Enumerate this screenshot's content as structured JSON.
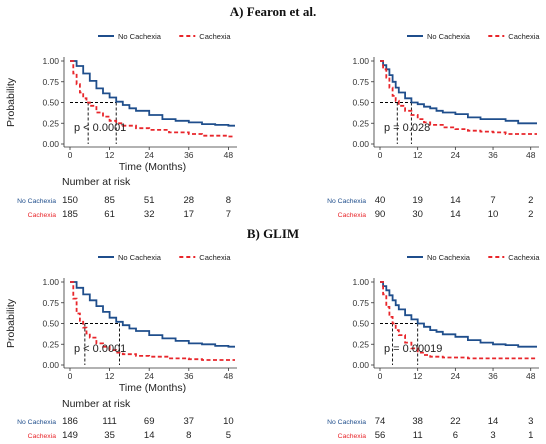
{
  "sections": [
    {
      "label": "A)",
      "title": "Fearon et al."
    },
    {
      "label": "B)",
      "title": "GLIM"
    }
  ],
  "colors": {
    "no_cachexia": "#1f4e8c",
    "cachexia": "#e8262b",
    "axis": "#333333",
    "ref": "#000000"
  },
  "chart_data": [
    {
      "type": "line",
      "panel": "A-left",
      "xlabel": "Time (Months)",
      "ylabel": "Probability",
      "xlim": [
        0,
        50
      ],
      "ylim": [
        0,
        1
      ],
      "xticks": [
        0,
        12,
        24,
        36,
        48
      ],
      "yticks": [
        0,
        0.25,
        0.5,
        0.75,
        1
      ],
      "ytick_labels": [
        "0.00",
        "0.25",
        "0.50",
        "0.75",
        "1.00"
      ],
      "legend": "top",
      "series": [
        {
          "name": "No Cachexia",
          "style": "solid",
          "x": [
            0,
            2,
            4,
            6,
            8,
            10,
            12,
            14,
            16,
            18,
            20,
            24,
            28,
            32,
            36,
            40,
            44,
            48,
            50
          ],
          "y": [
            1,
            0.94,
            0.85,
            0.76,
            0.67,
            0.61,
            0.56,
            0.51,
            0.47,
            0.43,
            0.4,
            0.35,
            0.3,
            0.28,
            0.26,
            0.24,
            0.23,
            0.22,
            0.22
          ]
        },
        {
          "name": "Cachexia",
          "style": "dashed",
          "x": [
            0,
            1,
            2,
            3,
            4,
            5,
            6,
            8,
            10,
            12,
            14,
            16,
            20,
            24,
            30,
            36,
            40,
            44,
            48,
            50
          ],
          "y": [
            1,
            0.85,
            0.72,
            0.62,
            0.55,
            0.5,
            0.46,
            0.38,
            0.33,
            0.28,
            0.25,
            0.22,
            0.19,
            0.17,
            0.14,
            0.12,
            0.1,
            0.1,
            0.09,
            0.09
          ]
        }
      ],
      "median_lines": [
        {
          "x": 5.5,
          "y": 0.5
        },
        {
          "x": 14,
          "y": 0.5
        }
      ],
      "pvalue": "p < 0.0001",
      "risk_table": {
        "title": "Number at risk",
        "times": [
          0,
          12,
          24,
          36,
          48
        ],
        "rows": [
          {
            "name": "No Cachexia",
            "values": [
              "150",
              "85",
              "51",
              "28",
              "8"
            ]
          },
          {
            "name": "Cachexia",
            "values": [
              "185",
              "61",
              "32",
              "17",
              "7"
            ]
          }
        ]
      }
    },
    {
      "type": "line",
      "panel": "A-right",
      "xlim": [
        0,
        50
      ],
      "ylim": [
        0,
        1
      ],
      "xticks": [
        0,
        12,
        24,
        36,
        48
      ],
      "yticks": [
        0,
        0.25,
        0.5,
        0.75,
        1
      ],
      "ytick_labels": [
        "0.00",
        "0.25",
        "0.50",
        "0.75",
        "1.00"
      ],
      "legend": "top",
      "series": [
        {
          "name": "No Cachexia",
          "style": "solid",
          "x": [
            0,
            1,
            2,
            3,
            4,
            5,
            6,
            8,
            10,
            12,
            14,
            16,
            18,
            20,
            24,
            28,
            32,
            36,
            40,
            44,
            48,
            50
          ],
          "y": [
            1,
            0.95,
            0.9,
            0.83,
            0.75,
            0.68,
            0.62,
            0.55,
            0.5,
            0.48,
            0.45,
            0.43,
            0.4,
            0.38,
            0.36,
            0.32,
            0.3,
            0.3,
            0.28,
            0.25,
            0.25,
            0.25
          ]
        },
        {
          "name": "Cachexia",
          "style": "dashed",
          "x": [
            0,
            1,
            2,
            3,
            4,
            5,
            6,
            8,
            10,
            12,
            14,
            16,
            20,
            24,
            28,
            32,
            36,
            40,
            44,
            48,
            50
          ],
          "y": [
            1,
            0.9,
            0.8,
            0.68,
            0.58,
            0.52,
            0.46,
            0.4,
            0.35,
            0.3,
            0.26,
            0.23,
            0.2,
            0.18,
            0.16,
            0.15,
            0.14,
            0.12,
            0.12,
            0.12,
            0.12
          ]
        }
      ],
      "median_lines": [
        {
          "x": 5.5,
          "y": 0.5
        },
        {
          "x": 10,
          "y": 0.5
        }
      ],
      "pvalue": "p = 0.028",
      "risk_table": {
        "times": [
          0,
          12,
          24,
          36,
          48
        ],
        "rows": [
          {
            "name": "No Cachexia",
            "values": [
              "40",
              "19",
              "14",
              "7",
              "2"
            ]
          },
          {
            "name": "Cachexia",
            "values": [
              "90",
              "30",
              "14",
              "10",
              "2"
            ]
          }
        ]
      }
    },
    {
      "type": "line",
      "panel": "B-left",
      "xlabel": "Time (Months)",
      "ylabel": "Probability",
      "xlim": [
        0,
        50
      ],
      "ylim": [
        0,
        1
      ],
      "xticks": [
        0,
        12,
        24,
        36,
        48
      ],
      "yticks": [
        0,
        0.25,
        0.5,
        0.75,
        1
      ],
      "ytick_labels": [
        "0.00",
        "0.25",
        "0.50",
        "0.75",
        "1.00"
      ],
      "legend": "top",
      "series": [
        {
          "name": "No Cachexia",
          "style": "solid",
          "x": [
            0,
            2,
            4,
            6,
            8,
            10,
            12,
            14,
            16,
            18,
            20,
            24,
            28,
            32,
            36,
            40,
            44,
            48,
            50
          ],
          "y": [
            1,
            0.93,
            0.85,
            0.78,
            0.71,
            0.64,
            0.57,
            0.52,
            0.48,
            0.44,
            0.41,
            0.36,
            0.32,
            0.29,
            0.26,
            0.25,
            0.23,
            0.22,
            0.22
          ]
        },
        {
          "name": "Cachexia",
          "style": "dashed",
          "x": [
            0,
            1,
            2,
            3,
            4,
            5,
            6,
            8,
            10,
            12,
            14,
            16,
            20,
            24,
            30,
            36,
            40,
            44,
            48,
            50
          ],
          "y": [
            1,
            0.8,
            0.62,
            0.52,
            0.45,
            0.38,
            0.33,
            0.26,
            0.22,
            0.18,
            0.15,
            0.13,
            0.11,
            0.1,
            0.08,
            0.07,
            0.06,
            0.06,
            0.06,
            0.06
          ]
        }
      ],
      "median_lines": [
        {
          "x": 4.5,
          "y": 0.5
        },
        {
          "x": 15,
          "y": 0.5
        }
      ],
      "pvalue": "p < 0.0001",
      "risk_table": {
        "title": "Number at risk",
        "times": [
          0,
          12,
          24,
          36,
          48
        ],
        "rows": [
          {
            "name": "No Cachexia",
            "values": [
              "186",
              "111",
              "69",
              "37",
              "10"
            ]
          },
          {
            "name": "Cachexia",
            "values": [
              "149",
              "35",
              "14",
              "8",
              "5"
            ]
          }
        ]
      }
    },
    {
      "type": "line",
      "panel": "B-right",
      "xlim": [
        0,
        50
      ],
      "ylim": [
        0,
        1
      ],
      "xticks": [
        0,
        12,
        24,
        36,
        48
      ],
      "yticks": [
        0,
        0.25,
        0.5,
        0.75,
        1
      ],
      "ytick_labels": [
        "0.00",
        "0.25",
        "0.50",
        "0.75",
        "1.00"
      ],
      "legend": "top",
      "series": [
        {
          "name": "No Cachexia",
          "style": "solid",
          "x": [
            0,
            1,
            2,
            3,
            4,
            5,
            6,
            8,
            10,
            12,
            14,
            16,
            18,
            20,
            24,
            28,
            32,
            36,
            40,
            44,
            48,
            50
          ],
          "y": [
            1,
            0.95,
            0.9,
            0.84,
            0.78,
            0.72,
            0.67,
            0.6,
            0.55,
            0.5,
            0.46,
            0.42,
            0.4,
            0.37,
            0.34,
            0.3,
            0.27,
            0.25,
            0.24,
            0.22,
            0.22,
            0.22
          ]
        },
        {
          "name": "Cachexia",
          "style": "dashed",
          "x": [
            0,
            1,
            2,
            3,
            4,
            5,
            6,
            8,
            10,
            12,
            14,
            16,
            20,
            24,
            28,
            32,
            36,
            40,
            44,
            48,
            50
          ],
          "y": [
            1,
            0.85,
            0.7,
            0.58,
            0.5,
            0.42,
            0.36,
            0.27,
            0.2,
            0.15,
            0.12,
            0.1,
            0.09,
            0.09,
            0.08,
            0.08,
            0.08,
            0.08,
            0.08,
            0.08,
            0.08
          ]
        }
      ],
      "median_lines": [
        {
          "x": 4,
          "y": 0.5
        },
        {
          "x": 12,
          "y": 0.5
        }
      ],
      "pvalue": "p = 0.00019",
      "risk_table": {
        "times": [
          0,
          12,
          24,
          36,
          48
        ],
        "rows": [
          {
            "name": "No Cachexia",
            "values": [
              "74",
              "38",
              "22",
              "14",
              "3"
            ]
          },
          {
            "name": "Cachexia",
            "values": [
              "56",
              "11",
              "6",
              "3",
              "1"
            ]
          }
        ]
      }
    }
  ]
}
